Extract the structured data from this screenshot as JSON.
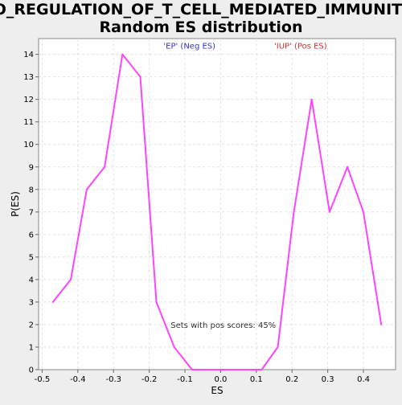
{
  "chart_data": {
    "type": "line",
    "title_line1": "GO_REGULATION_OF_T_CELL_MEDIATED_IMMUNITY:",
    "title_line2": "Random ES distribution",
    "xlabel": "ES",
    "ylabel": "P(ES)",
    "xlim": [
      -0.51,
      0.49
    ],
    "ylim": [
      0,
      14.7
    ],
    "x_ticks": [
      -0.5,
      -0.4,
      -0.3,
      -0.2,
      -0.1,
      0.0,
      0.1,
      0.2,
      0.3,
      0.4
    ],
    "x_tick_labels": [
      "-0.5",
      "-0.4",
      "-0.3",
      "-0.2",
      "-0.1",
      "0.0",
      "0.1",
      "0.2",
      "0.3",
      "0.4"
    ],
    "y_ticks": [
      0,
      1,
      2,
      3,
      4,
      5,
      6,
      7,
      8,
      9,
      10,
      11,
      12,
      13,
      14
    ],
    "y_tick_labels": [
      "0",
      "1",
      "2",
      "3",
      "4",
      "5",
      "6",
      "7",
      "8",
      "9",
      "10",
      "11",
      "12",
      "13",
      "14"
    ],
    "grid": true,
    "series": [
      {
        "color": "#ff44ff",
        "x": [
          -0.47,
          -0.42,
          -0.375,
          -0.325,
          -0.275,
          -0.225,
          -0.18,
          -0.13,
          -0.08,
          -0.03,
          0.015,
          0.065,
          0.115,
          0.16,
          0.205,
          0.255,
          0.305,
          0.355,
          0.4,
          0.45
        ],
        "y": [
          3,
          4,
          8,
          9,
          14,
          13,
          3,
          1,
          0,
          0,
          0,
          0,
          0,
          1,
          7,
          12,
          7,
          9,
          7,
          2
        ]
      }
    ],
    "annotations": [
      {
        "text": "'EP' (Neg ES)",
        "color": "#3333cc",
        "x": -0.16,
        "y": 14.4
      },
      {
        "text": "'IUP' (Pos ES)",
        "color": "#cc3333",
        "x": 0.15,
        "y": 14.4
      },
      {
        "text": "Sets with pos scores: 45%",
        "color": "#333333",
        "x": -0.14,
        "y": 2
      }
    ]
  }
}
